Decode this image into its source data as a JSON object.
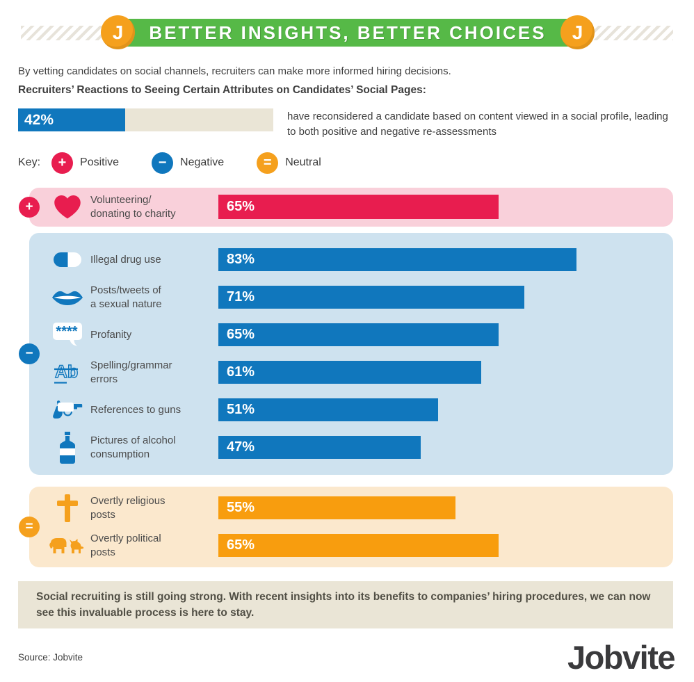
{
  "header": {
    "title": "BETTER INSIGHTS, BETTER CHOICES",
    "logo_letter": "J"
  },
  "intro": {
    "text": "By vetting candidates on social channels, recruiters can make more informed hiring decisions.",
    "heading": "Recruiters’ Reactions to Seeing Certain Attributes on Candidates’ Social Pages:"
  },
  "stat": {
    "value": 42,
    "display": "42%",
    "description": "have reconsidered a candidate based on content viewed in a social profile, leading to both positive and negative re-assessments"
  },
  "key": {
    "label": "Key:",
    "items": [
      {
        "symbol": "+",
        "label": "Positive",
        "color": "#e81d4f"
      },
      {
        "symbol": "−",
        "label": "Negative",
        "color": "#1077bd"
      },
      {
        "symbol": "=",
        "label": "Neutral",
        "color": "#f5a01d"
      }
    ]
  },
  "sections": [
    {
      "sentiment": "Positive",
      "badge_symbol": "+",
      "badge_color": "#e81d4f",
      "bg": "#f9d0da",
      "bar_color": "#e81d4f",
      "rows": [
        {
          "icon": "heart-icon",
          "label": "Volunteering/\ndonating to charity",
          "value": 65,
          "display": "65%"
        }
      ]
    },
    {
      "sentiment": "Negative",
      "badge_symbol": "−",
      "badge_color": "#1077bd",
      "bg": "#cee2ef",
      "bar_color": "#1077bd",
      "rows": [
        {
          "icon": "pill-icon",
          "label": "Illegal drug use",
          "value": 83,
          "display": "83%"
        },
        {
          "icon": "lips-icon",
          "label": "Posts/tweets of\na sexual nature",
          "value": 71,
          "display": "71%"
        },
        {
          "icon": "speech-bubble-icon",
          "label": "Profanity",
          "value": 65,
          "display": "65%"
        },
        {
          "icon": "spelling-icon",
          "label": "Spelling/grammar\nerrors",
          "value": 61,
          "display": "61%"
        },
        {
          "icon": "gun-icon",
          "label": "References to guns",
          "value": 51,
          "display": "51%"
        },
        {
          "icon": "bottle-icon",
          "label": "Pictures of alcohol\nconsumption",
          "value": 47,
          "display": "47%"
        }
      ]
    },
    {
      "sentiment": "Neutral",
      "badge_symbol": "=",
      "badge_color": "#f5a01d",
      "bg": "#fbe8cd",
      "bar_color": "#f89d0e",
      "rows": [
        {
          "icon": "cross-icon",
          "label": "Overtly religious\nposts",
          "value": 55,
          "display": "55%"
        },
        {
          "icon": "political-icon",
          "label": "Overtly political\nposts",
          "value": 65,
          "display": "65%"
        }
      ]
    }
  ],
  "bottom_banner": {
    "text": "Social recruiting is still going strong. With recent insights into its benefits to companies’ hiring procedures, we can now see this invaluable process is here to stay."
  },
  "footer": {
    "source": "Source: Jobvite",
    "logo": "Jobvite"
  },
  "colors": {
    "green": "#56b947",
    "orange": "#f5a01d",
    "crimson": "#e81d4f",
    "blue": "#1077bd",
    "beige": "#eae5d6"
  },
  "chart_data": {
    "type": "bar",
    "orientation": "horizontal",
    "title": "Recruiters’ Reactions to Seeing Certain Attributes on Candidates’ Social Pages",
    "value_unit": "%",
    "axis_range": [
      0,
      100
    ],
    "callout": {
      "value": 42,
      "label": "have reconsidered a candidate based on content viewed in a social profile, leading to both positive and negative re-assessments"
    },
    "groups": [
      {
        "sentiment": "Positive",
        "color": "#e81d4f",
        "items": [
          {
            "label": "Volunteering/donating to charity",
            "value": 65
          }
        ]
      },
      {
        "sentiment": "Negative",
        "color": "#1077bd",
        "items": [
          {
            "label": "Illegal drug use",
            "value": 83
          },
          {
            "label": "Posts/tweets of a sexual nature",
            "value": 71
          },
          {
            "label": "Profanity",
            "value": 65
          },
          {
            "label": "Spelling/grammar errors",
            "value": 61
          },
          {
            "label": "References to guns",
            "value": 51
          },
          {
            "label": "Pictures of alcohol consumption",
            "value": 47
          }
        ]
      },
      {
        "sentiment": "Neutral",
        "color": "#f89d0e",
        "items": [
          {
            "label": "Overtly religious posts",
            "value": 55
          },
          {
            "label": "Overtly political posts",
            "value": 65
          }
        ]
      }
    ],
    "legend_position": "top",
    "grid": false
  }
}
